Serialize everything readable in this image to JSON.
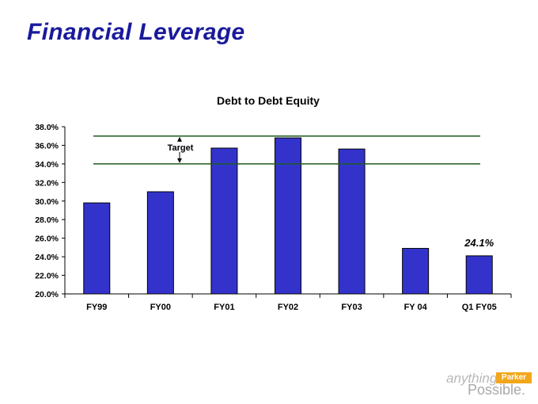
{
  "page": {
    "title": "Financial Leverage"
  },
  "logo": {
    "word1": "anything",
    "badge": "Parker",
    "word2": "Possible."
  },
  "chart_data": {
    "type": "bar",
    "title": "Debt to Debt Equity",
    "categories": [
      "FY99",
      "FY00",
      "FY01",
      "FY02",
      "FY03",
      "FY 04",
      "Q1 FY05"
    ],
    "values": [
      29.8,
      31.0,
      35.7,
      36.8,
      35.6,
      24.9,
      24.1
    ],
    "ylim": [
      20,
      38
    ],
    "yticks": [
      "20.0%",
      "22.0%",
      "24.0%",
      "26.0%",
      "28.0%",
      "30.0%",
      "32.0%",
      "34.0%",
      "36.0%",
      "38.0%"
    ],
    "bar_color": "#3333cc",
    "target": {
      "label": "Target",
      "low": 34,
      "high": 37,
      "color": "#1e5a1e"
    },
    "annotation": {
      "category": "Q1 FY05",
      "text": "24.1%"
    },
    "grid": false
  }
}
